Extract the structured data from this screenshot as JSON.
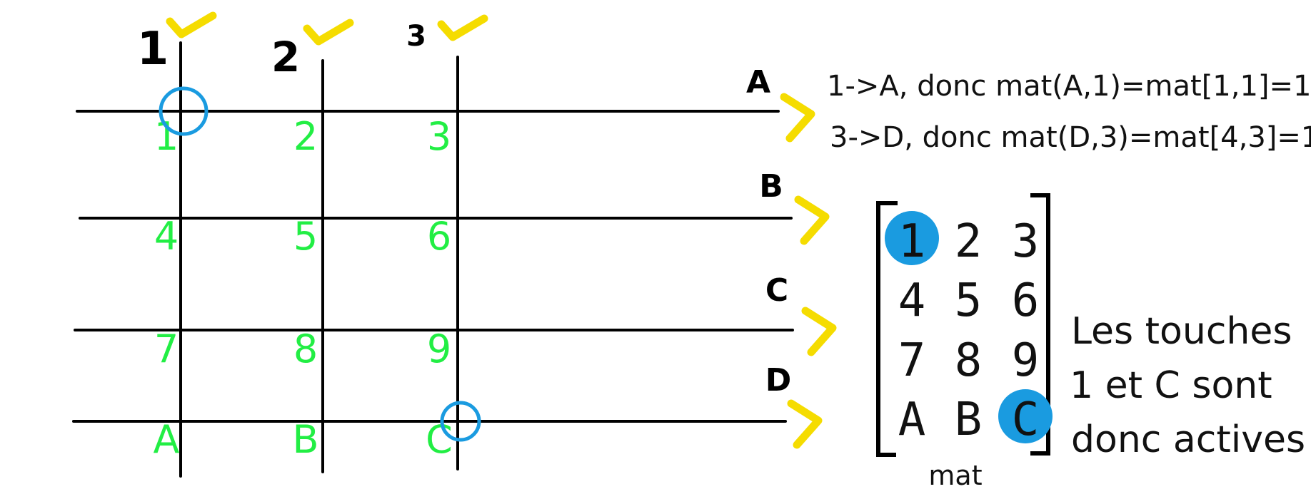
{
  "colors": {
    "wire": "#000000",
    "key_label": "#22ee44",
    "active_marker": "#1a9be0",
    "check_mark": "#f5dc00",
    "text": "#111111"
  },
  "columns": [
    {
      "label": "1",
      "checked": true
    },
    {
      "label": "2",
      "checked": true
    },
    {
      "label": "3",
      "checked": true
    }
  ],
  "rows": [
    {
      "label": "A",
      "checked": true
    },
    {
      "label": "B",
      "checked": true
    },
    {
      "label": "C",
      "checked": true
    },
    {
      "label": "D",
      "checked": true
    }
  ],
  "keys": [
    [
      "1",
      "2",
      "3"
    ],
    [
      "4",
      "5",
      "6"
    ],
    [
      "7",
      "8",
      "9"
    ],
    [
      "A",
      "B",
      "C"
    ]
  ],
  "active_keys": [
    "1",
    "C"
  ],
  "notes": [
    "1->A, donc mat(A,1)=mat[1,1]=1",
    "3->D, donc mat(D,3)=mat[4,3]=1"
  ],
  "matrix": {
    "name": "mat",
    "cells": [
      [
        "1",
        "2",
        "3"
      ],
      [
        "4",
        "5",
        "6"
      ],
      [
        "7",
        "8",
        "9"
      ],
      [
        "A",
        "B",
        "C"
      ]
    ],
    "highlighted": [
      "1",
      "C"
    ]
  },
  "conclusion": [
    "Les touches",
    "1 et C sont",
    "donc actives"
  ]
}
